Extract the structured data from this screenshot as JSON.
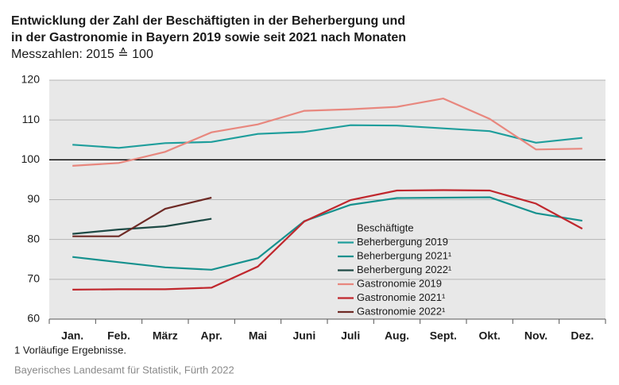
{
  "chart_data": {
    "type": "line",
    "title_lines": [
      "Entwicklung der Zahl der Beschäftigten in der Beherbergung und",
      "in der Gastronomie in Bayern 2019 sowie seit 2021 nach Monaten"
    ],
    "subtitle": "Messzahlen: 2015 ≙ 100",
    "categories": [
      "Jan.",
      "Feb.",
      "März",
      "Apr.",
      "Mai",
      "Juni",
      "Juli",
      "Aug.",
      "Sept.",
      "Okt.",
      "Nov.",
      "Dez."
    ],
    "ylim": [
      60,
      120
    ],
    "yticks": [
      60,
      70,
      80,
      90,
      100,
      110,
      120
    ],
    "grid": true,
    "highlight_tick": 100,
    "legend_title": "Beschäftigte",
    "series": [
      {
        "name": "Beherbergung 2019",
        "color": "#1f9e9c",
        "values": [
          103.8,
          103.0,
          104.2,
          104.5,
          106.5,
          107.0,
          108.7,
          108.6,
          107.9,
          107.2,
          104.3,
          105.5
        ]
      },
      {
        "name": "Beherbergung 2021¹",
        "color": "#16918e",
        "values": [
          75.6,
          74.3,
          73.0,
          72.4,
          75.3,
          84.6,
          88.7,
          90.4,
          90.5,
          90.6,
          86.6,
          84.7
        ]
      },
      {
        "name": "Beherbergung 2022¹",
        "color": "#1e4a45",
        "values": [
          81.4,
          82.5,
          83.3,
          85.2,
          null,
          null,
          null,
          null,
          null,
          null,
          null,
          null
        ]
      },
      {
        "name": "Gastronomie 2019",
        "color": "#e8877e",
        "values": [
          98.5,
          99.2,
          102.0,
          106.9,
          108.9,
          112.3,
          112.7,
          113.3,
          115.4,
          110.3,
          102.6,
          102.8
        ]
      },
      {
        "name": "Gastronomie 2021¹",
        "color": "#c0272d",
        "values": [
          67.4,
          67.5,
          67.5,
          67.9,
          73.2,
          84.5,
          89.9,
          92.3,
          92.4,
          92.3,
          89.0,
          82.7
        ]
      },
      {
        "name": "Gastronomie 2022¹",
        "color": "#6e2a25",
        "values": [
          80.8,
          80.8,
          87.7,
          90.5,
          null,
          null,
          null,
          null,
          null,
          null,
          null,
          null
        ]
      }
    ],
    "footnote": "1  Vorläufige Ergebnisse.",
    "source": "Bayerisches Landesamt für Statistik, Fürth 2022"
  }
}
